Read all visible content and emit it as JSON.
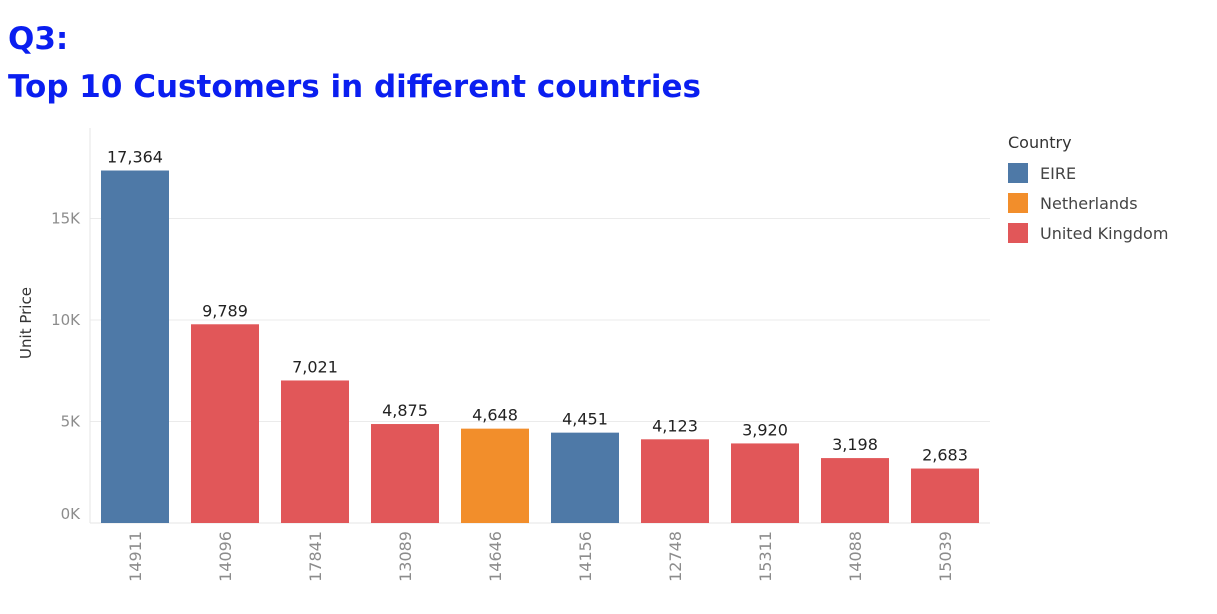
{
  "title": {
    "line1": "Q3:",
    "line2": "Top 10 Customers in different countries"
  },
  "legend": {
    "title": "Country",
    "items": [
      {
        "label": "EIRE",
        "color": "#4e79a7"
      },
      {
        "label": "Netherlands",
        "color": "#f28e2b"
      },
      {
        "label": "United Kingdom",
        "color": "#e15759"
      }
    ]
  },
  "chart_data": {
    "type": "bar",
    "title": "Top 10 Customers in different countries",
    "xlabel": "",
    "ylabel": "Unit Price",
    "ylim": [
      0,
      19000
    ],
    "yticks": [
      0,
      5000,
      10000,
      15000
    ],
    "ytick_labels": [
      "0K",
      "5K",
      "10K",
      "15K"
    ],
    "grid": true,
    "legend_position": "right",
    "categories": [
      "14911",
      "14096",
      "17841",
      "13089",
      "14646",
      "14156",
      "12748",
      "15311",
      "14088",
      "15039"
    ],
    "values": [
      17364,
      9789,
      7021,
      4875,
      4648,
      4451,
      4123,
      3920,
      3198,
      2683
    ],
    "value_labels": [
      "17,364",
      "9,789",
      "7,021",
      "4,875",
      "4,648",
      "4,451",
      "4,123",
      "3,920",
      "3,198",
      "2,683"
    ],
    "country": [
      "EIRE",
      "United Kingdom",
      "United Kingdom",
      "United Kingdom",
      "Netherlands",
      "EIRE",
      "United Kingdom",
      "United Kingdom",
      "United Kingdom",
      "United Kingdom"
    ],
    "colors": {
      "EIRE": "#4e79a7",
      "Netherlands": "#f28e2b",
      "United Kingdom": "#e15759"
    }
  }
}
